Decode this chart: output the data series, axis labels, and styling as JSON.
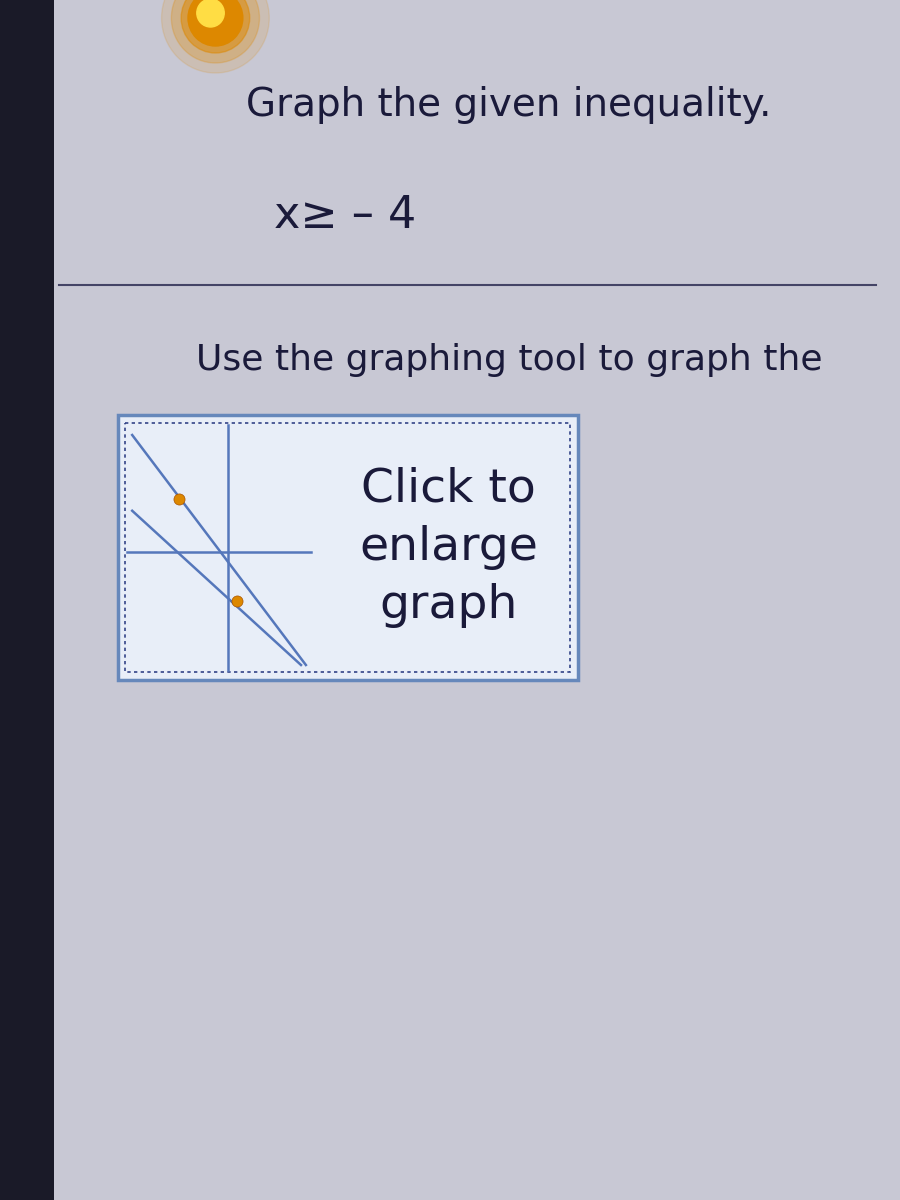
{
  "title": "Graph the given inequality.",
  "inequality": "x≥ – 4",
  "instruction": "Use the graphing tool to graph the",
  "button_text_line1": "Click to",
  "button_text_line2": "enlarge",
  "button_text_line3": "graph",
  "bg_color": "#c8c8d4",
  "left_panel_color": "#1a1a28",
  "title_color": "#1a1a3a",
  "text_color": "#1a1a3a",
  "box_bg": "#e8eef8",
  "box_outer_border": "#6688bb",
  "box_inner_border": "#334488",
  "graph_line_color": "#5577bb",
  "graph_point_color": "#dd8800",
  "divider_color": "#444466",
  "glare_outer": "#dd8800",
  "glare_inner": "#ffdd44",
  "title_fontsize": 28,
  "inequality_fontsize": 32,
  "instruction_fontsize": 26,
  "button_fontsize": 34
}
